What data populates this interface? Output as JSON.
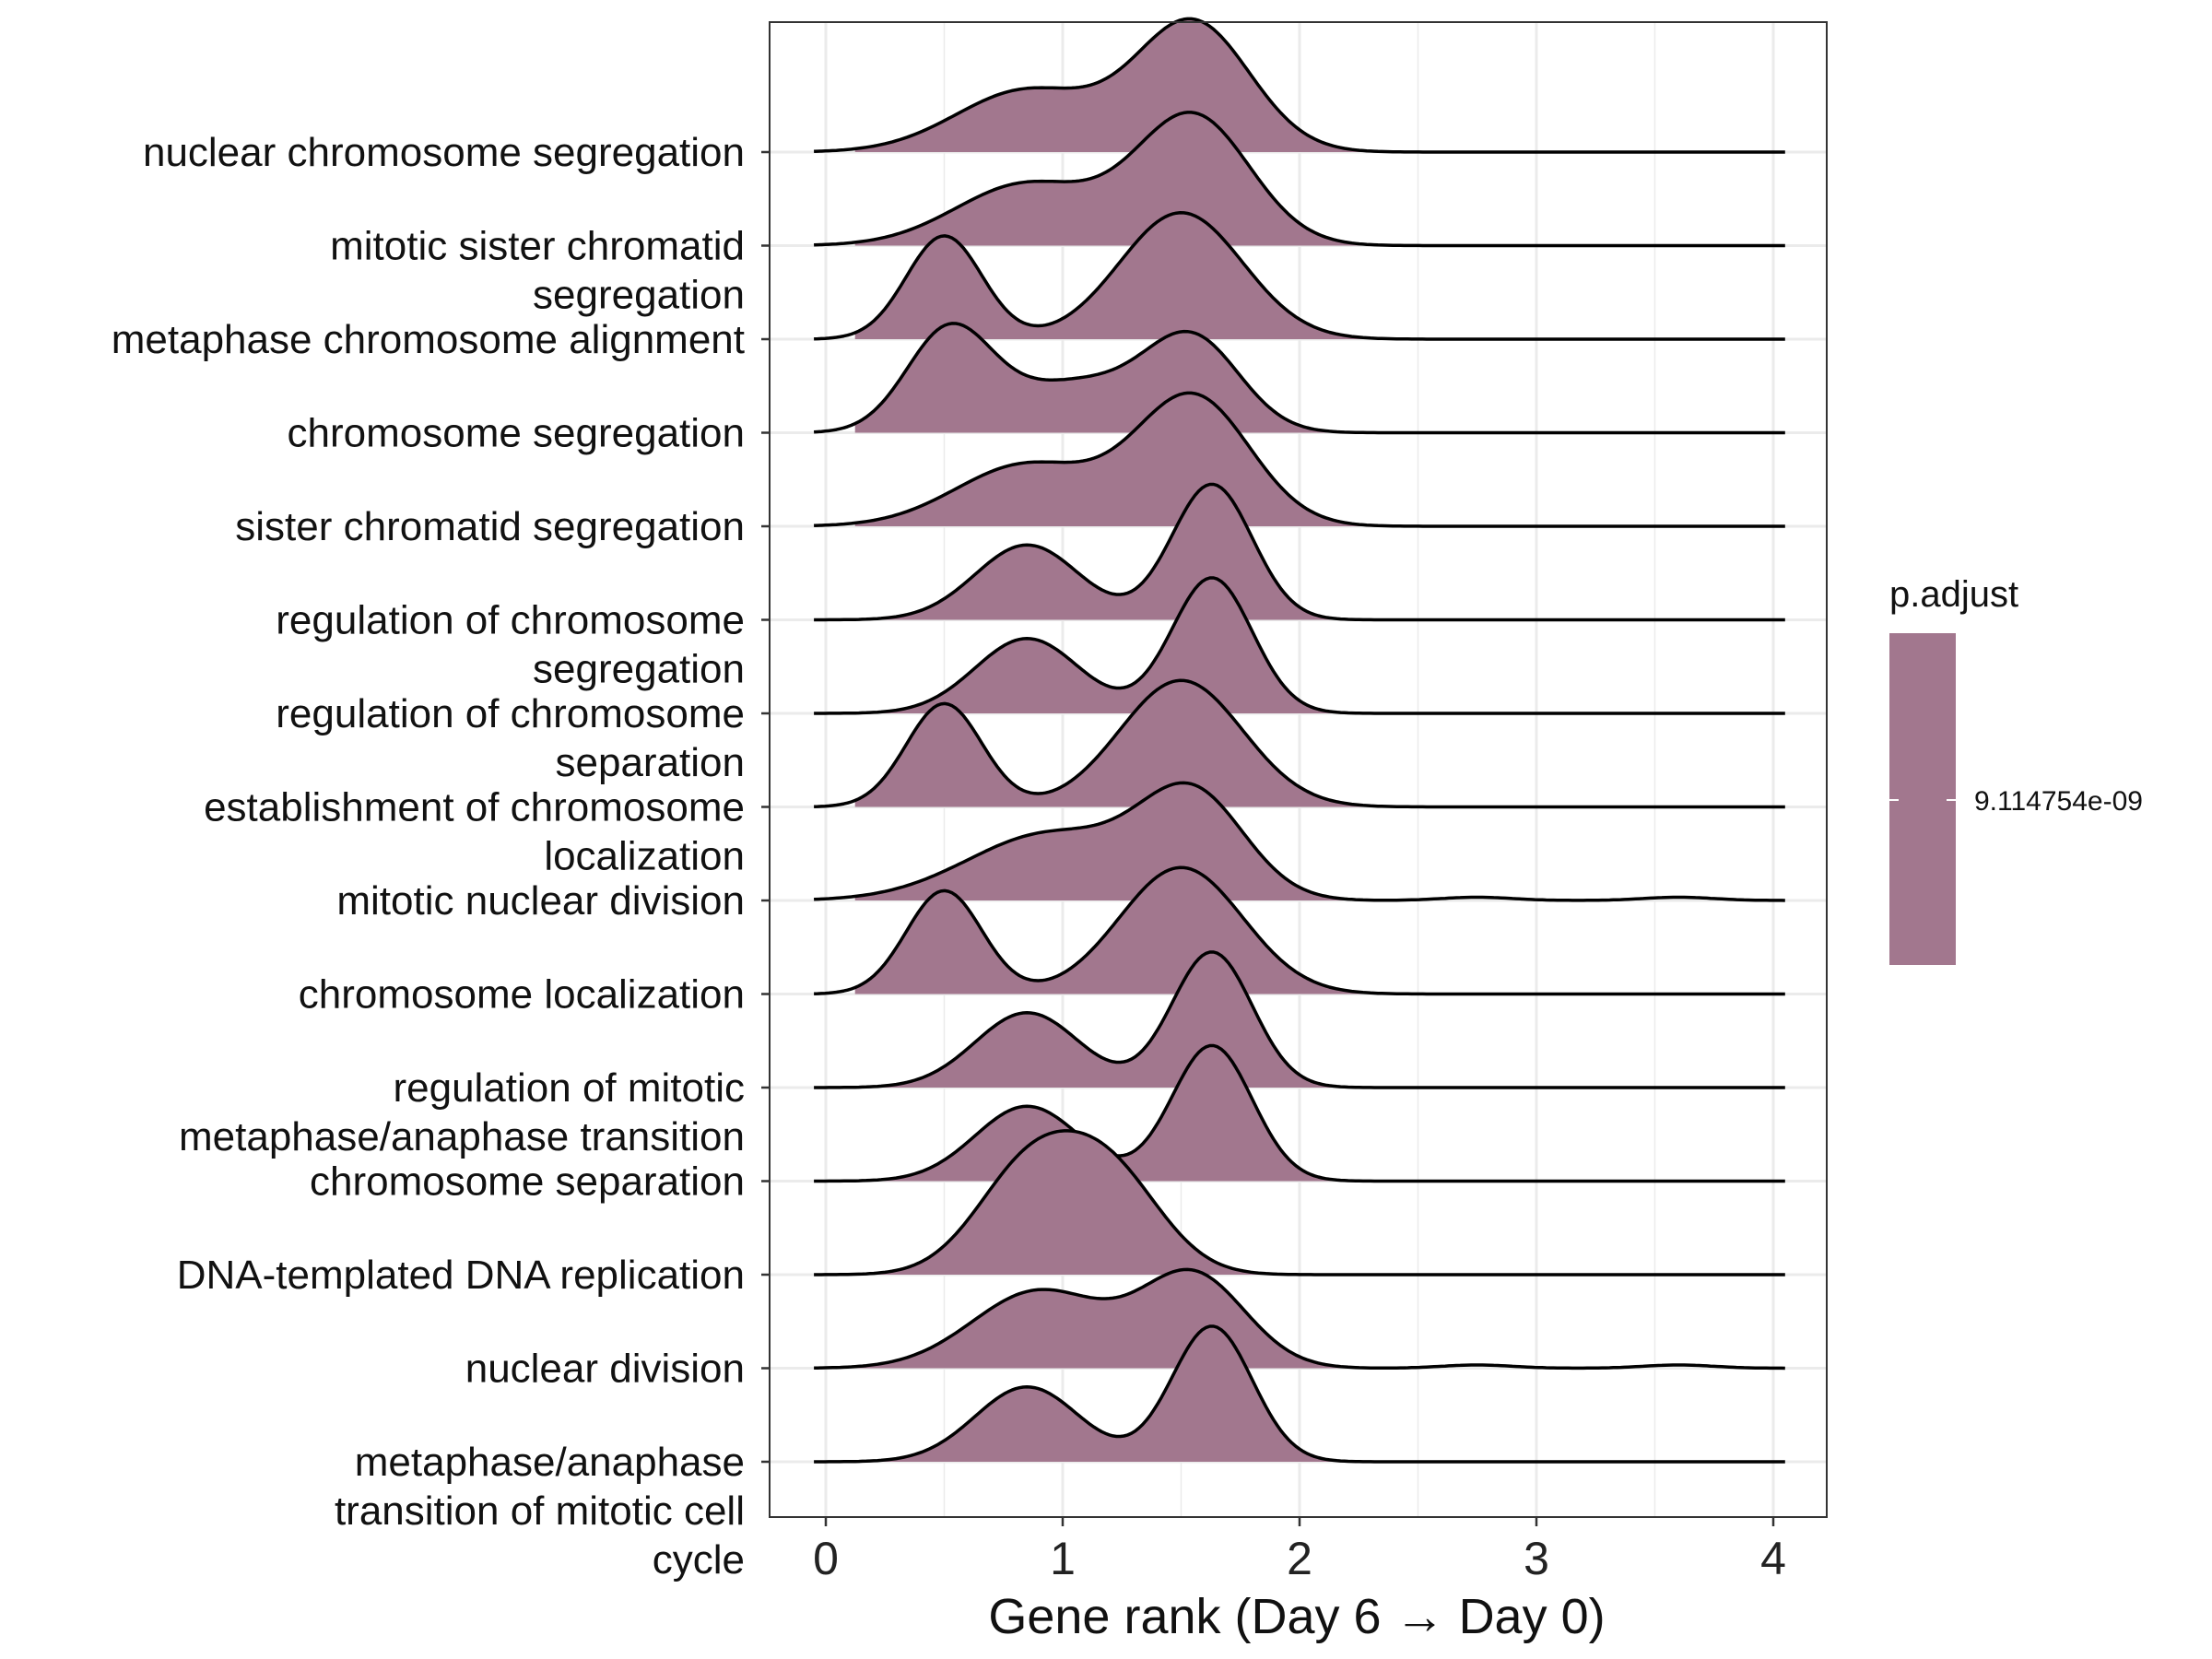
{
  "chart_data": {
    "type": "ridgeline",
    "title": "",
    "xlabel": "Gene rank (Day 6 → Day 0)",
    "ylabel": "",
    "xlim": [
      -0.25,
      4.25
    ],
    "x_ticks": [
      "0",
      "1",
      "2",
      "3",
      "4"
    ],
    "grid": true,
    "fill_color": "#a2778e",
    "legend": {
      "title": "p.adjust",
      "value_label": "9.114754e-09",
      "position": "right"
    },
    "series": [
      {
        "name": "nuclear chromosome segregation",
        "label_lines": [
          "nuclear chromosome segregation"
        ],
        "peaks": [
          [
            0.85,
            0.3,
            0.48
          ],
          [
            1.55,
            0.24,
            1.0
          ]
        ]
      },
      {
        "name": "mitotic sister chromatid segregation",
        "label_lines": [
          "mitotic sister chromatid",
          "segregation"
        ],
        "peaks": [
          [
            0.85,
            0.3,
            0.48
          ],
          [
            1.55,
            0.24,
            1.0
          ]
        ]
      },
      {
        "name": "metaphase chromosome alignment",
        "label_lines": [
          "metaphase chromosome alignment"
        ],
        "peaks": [
          [
            0.5,
            0.16,
            0.8
          ],
          [
            1.5,
            0.26,
            0.98
          ]
        ]
      },
      {
        "name": "chromosome segregation",
        "label_lines": [
          "chromosome segregation"
        ],
        "peaks": [
          [
            0.52,
            0.18,
            0.78
          ],
          [
            1.05,
            0.28,
            0.38
          ],
          [
            1.55,
            0.2,
            0.7
          ]
        ]
      },
      {
        "name": "sister chromatid segregation",
        "label_lines": [
          "sister chromatid segregation"
        ],
        "peaks": [
          [
            0.85,
            0.3,
            0.48
          ],
          [
            1.55,
            0.24,
            1.0
          ]
        ]
      },
      {
        "name": "regulation of chromosome segregation",
        "label_lines": [
          "regulation of chromosome",
          "segregation"
        ],
        "peaks": [
          [
            0.85,
            0.22,
            0.58
          ],
          [
            1.63,
            0.17,
            1.05
          ]
        ]
      },
      {
        "name": "regulation of chromosome separation",
        "label_lines": [
          "regulation of chromosome",
          "separation"
        ],
        "peaks": [
          [
            0.85,
            0.22,
            0.58
          ],
          [
            1.63,
            0.17,
            1.05
          ]
        ]
      },
      {
        "name": "establishment of chromosome localization",
        "label_lines": [
          "establishment of chromosome",
          "localization"
        ],
        "peaks": [
          [
            0.5,
            0.16,
            0.8
          ],
          [
            1.5,
            0.26,
            0.98
          ]
        ]
      },
      {
        "name": "mitotic nuclear division",
        "label_lines": [
          "mitotic nuclear division"
        ],
        "peaks": [
          [
            0.95,
            0.35,
            0.52
          ],
          [
            1.55,
            0.22,
            0.78
          ],
          [
            2.75,
            0.15,
            0.025
          ],
          [
            3.6,
            0.15,
            0.025
          ]
        ]
      },
      {
        "name": "chromosome localization",
        "label_lines": [
          "chromosome localization"
        ],
        "peaks": [
          [
            0.5,
            0.16,
            0.8
          ],
          [
            1.5,
            0.26,
            0.98
          ]
        ]
      },
      {
        "name": "regulation of mitotic metaphase/anaphase transition",
        "label_lines": [
          "regulation of mitotic",
          "metaphase/anaphase transition"
        ],
        "peaks": [
          [
            0.85,
            0.22,
            0.58
          ],
          [
            1.63,
            0.17,
            1.05
          ]
        ]
      },
      {
        "name": "chromosome separation",
        "label_lines": [
          "chromosome separation"
        ],
        "peaks": [
          [
            0.85,
            0.22,
            0.58
          ],
          [
            1.63,
            0.17,
            1.05
          ]
        ]
      },
      {
        "name": "DNA-templated DNA replication",
        "label_lines": [
          "DNA-templated DNA replication"
        ],
        "peaks": [
          [
            0.85,
            0.22,
            0.78
          ],
          [
            1.2,
            0.22,
            0.75
          ]
        ]
      },
      {
        "name": "nuclear division",
        "label_lines": [
          "nuclear division"
        ],
        "peaks": [
          [
            0.9,
            0.28,
            0.6
          ],
          [
            1.55,
            0.22,
            0.72
          ],
          [
            2.75,
            0.15,
            0.025
          ],
          [
            3.6,
            0.15,
            0.025
          ]
        ]
      },
      {
        "name": "metaphase/anaphase transition of mitotic cell cycle",
        "label_lines": [
          "metaphase/anaphase",
          "transition of mitotic cell",
          "cycle"
        ],
        "peaks": [
          [
            0.85,
            0.22,
            0.58
          ],
          [
            1.63,
            0.17,
            1.05
          ]
        ]
      }
    ]
  }
}
